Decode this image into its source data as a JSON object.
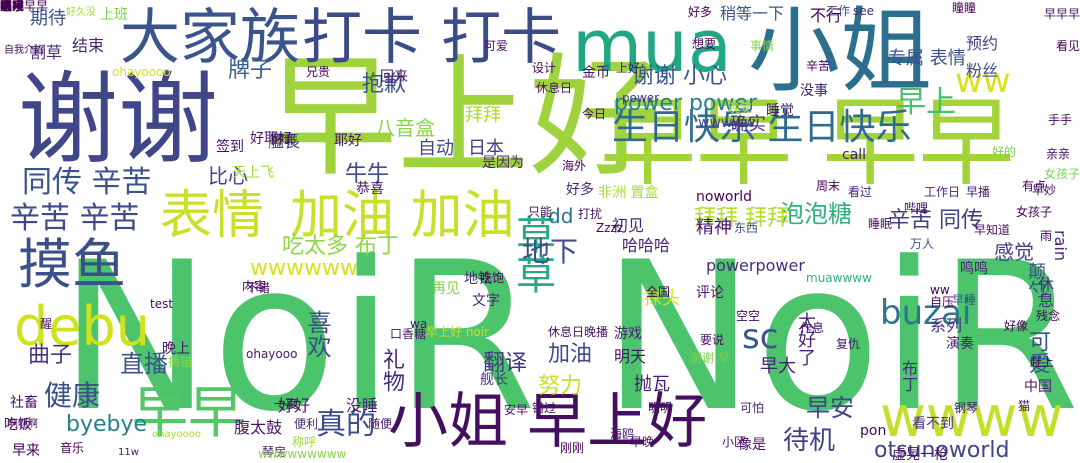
{
  "words": [
    {
      "text": "NoiR NoiR",
      "color": "#4bc46c"
    },
    {
      "text": "早上好",
      "color": "#9fd33e"
    },
    {
      "text": "谢谢",
      "color": "#404688"
    },
    {
      "text": "早早 早早",
      "color": "#a2d43a"
    },
    {
      "text": "小姐",
      "color": "#2b6e8e"
    },
    {
      "text": "mua",
      "color": "#22a785"
    },
    {
      "text": "大家族",
      "color": "#3b548b"
    },
    {
      "text": "打卡 打卡",
      "color": "#3a4b86"
    },
    {
      "text": "表情",
      "color": "#c9df2a"
    },
    {
      "text": "加油 加油",
      "color": "#c8e02a"
    },
    {
      "text": "摸鱼",
      "color": "#3b5089"
    },
    {
      "text": "debu",
      "color": "#d0e11d"
    },
    {
      "text": "早早",
      "color": "#54c568"
    },
    {
      "text": "小姐 早上好",
      "color": "#450f5f"
    },
    {
      "text": "wwww",
      "color": "#c3df2a"
    },
    {
      "text": "生日快乐 生日快乐",
      "color": "#2f6b8e"
    },
    {
      "text": "同传 辛苦",
      "color": "#3b528b"
    },
    {
      "text": "辛苦 辛苦",
      "color": "#3e4a89"
    },
    {
      "text": "早上",
      "color": "#45bf70"
    },
    {
      "text": "ww",
      "color": "#d8e219"
    },
    {
      "text": "草草",
      "color": "#2ca686"
    },
    {
      "text": "buzai",
      "color": "#2b768e"
    },
    {
      "text": "power power",
      "color": "#26828e"
    },
    {
      "text": "谢谢 小心",
      "color": "#3a538b"
    },
    {
      "text": "牌子",
      "color": "#355f8d"
    },
    {
      "text": "抱歉",
      "color": "#3b518b"
    },
    {
      "text": "wwwwww",
      "color": "#d6e21a"
    },
    {
      "text": "吃太多 布丁",
      "color": "#8ed645"
    },
    {
      "text": "泡泡糖",
      "color": "#32b17a"
    },
    {
      "text": "拜拜 拜拜",
      "color": "#b3dc2b"
    },
    {
      "text": "辛苦 同传",
      "color": "#413f80"
    },
    {
      "text": "健康",
      "color": "#3c4f8a"
    },
    {
      "text": "直播",
      "color": "#3a538b"
    },
    {
      "text": "曲子",
      "color": "#46327e"
    },
    {
      "text": "byebye",
      "color": "#277f8e"
    },
    {
      "text": "真的",
      "color": "#3c4f8a"
    },
    {
      "text": "早安",
      "color": "#3f4788"
    },
    {
      "text": "待机",
      "color": "#433e85"
    },
    {
      "text": "otsunoworld",
      "color": "#414487"
    },
    {
      "text": "sc",
      "color": "#39568c"
    },
    {
      "text": "喜欢",
      "color": "#3d4e8a"
    },
    {
      "text": "礼物",
      "color": "#482979"
    },
    {
      "text": "翻译",
      "color": "#453581"
    },
    {
      "text": "加油",
      "color": "#3e4c8a"
    },
    {
      "text": "努力",
      "color": "#c8e020"
    },
    {
      "text": "地下",
      "color": "#3c508b"
    },
    {
      "text": "感觉",
      "color": "#424086"
    },
    {
      "text": "可爱",
      "color": "#39558c"
    },
    {
      "text": "期待",
      "color": "#3b528b"
    },
    {
      "text": "结束",
      "color": "#482475"
    },
    {
      "text": "割草",
      "color": "#46307e"
    },
    {
      "text": "艦長",
      "color": "#3e4989"
    },
    {
      "text": "比心",
      "color": "#404588"
    },
    {
      "text": "牛牛",
      "color": "#3d4d8a"
    },
    {
      "text": "八音盒",
      "color": "#8bd646"
    },
    {
      "text": "自动",
      "color": "#3f4889"
    },
    {
      "text": "日本",
      "color": "#433d84"
    },
    {
      "text": "拜拜",
      "color": "#b2dd2d"
    },
    {
      "text": "预约",
      "color": "#424186"
    },
    {
      "text": "粉丝",
      "color": "#3e4c8a"
    },
    {
      "text": "专属 表情",
      "color": "#3b518b"
    },
    {
      "text": "不行",
      "color": "#440154"
    },
    {
      "text": "稍等一下",
      "color": "#3a548c"
    },
    {
      "text": "回来",
      "color": "#481a6c"
    },
    {
      "text": "上班",
      "color": "#7ad151"
    },
    {
      "text": "see",
      "color": "#482878"
    },
    {
      "text": "power",
      "color": "#443983"
    },
    {
      "text": "wwwww",
      "color": "#414487"
    },
    {
      "text": "确实",
      "color": "#46337f"
    },
    {
      "text": "dd",
      "color": "#2e6f8e"
    },
    {
      "text": "精神",
      "color": "#48186a"
    },
    {
      "text": "初见",
      "color": "#482576"
    },
    {
      "text": "哈哈哈",
      "color": "#481d6f"
    },
    {
      "text": "powerpower",
      "color": "#472d7b"
    },
    {
      "text": "探头",
      "color": "#d2e21b"
    },
    {
      "text": "地铁",
      "color": "#472c7a"
    },
    {
      "text": "再见",
      "color": "#84d44b"
    },
    {
      "text": "舰长",
      "color": "#46337f"
    },
    {
      "text": "文字",
      "color": "#482374"
    },
    {
      "text": "评论",
      "color": "#471164"
    },
    {
      "text": "游戏",
      "color": "#482071"
    },
    {
      "text": "明天",
      "color": "#48196b"
    },
    {
      "text": "早大",
      "color": "#482173"
    },
    {
      "text": "太好了",
      "color": "#482576"
    },
    {
      "text": "抛瓦",
      "color": "#481c6e"
    },
    {
      "text": "布丁",
      "color": "#46307e"
    },
    {
      "text": "演奏",
      "color": "#481b6d"
    },
    {
      "text": "系列",
      "color": "#472e7c"
    },
    {
      "text": "颠勺",
      "color": "#3c4f8a"
    },
    {
      "text": "好久没",
      "color": "#a5db36"
    },
    {
      "text": "没睡",
      "color": "#482071"
    },
    {
      "text": "好好",
      "color": "#471063"
    },
    {
      "text": "中国",
      "color": "#481a6c"
    },
    {
      "text": "看不到",
      "color": "#46327e"
    },
    {
      "text": "好多",
      "color": "#482878"
    },
    {
      "text": "工作日",
      "color": "#482677"
    },
    {
      "text": "早播",
      "color": "#481f70"
    },
    {
      "text": "早妙",
      "color": "#471063"
    },
    {
      "text": "女孩子",
      "color": "#440154"
    },
    {
      "text": "noworld",
      "color": "#440154"
    },
    {
      "text": "周末",
      "color": "#440154"
    },
    {
      "text": "看过",
      "color": "#482374"
    },
    {
      "text": "睡眠",
      "color": "#460b5e"
    },
    {
      "text": "雨",
      "color": "#440154"
    },
    {
      "text": "rain",
      "color": "#482878"
    },
    {
      "text": "鸣鸣",
      "color": "#482374"
    },
    {
      "text": "休息",
      "color": "#472f7d"
    },
    {
      "text": "睡觉",
      "color": "#481c6e"
    },
    {
      "text": "没事",
      "color": "#482173"
    },
    {
      "text": "辛苦",
      "color": "#46085c"
    },
    {
      "text": "是因为",
      "color": "#482475"
    },
    {
      "text": "海外",
      "color": "#440154"
    },
    {
      "text": "好耶",
      "color": "#471365"
    },
    {
      "text": "好耶好",
      "color": "#481467"
    },
    {
      "text": "耶好",
      "color": "#471365"
    },
    {
      "text": "天上飞",
      "color": "#a0da39"
    },
    {
      "text": "签到",
      "color": "#470e61"
    },
    {
      "text": "恭喜",
      "color": "#471164"
    },
    {
      "text": "非洲 置盒",
      "color": "#a8db34"
    },
    {
      "text": "腹太鼓",
      "color": "#48186a"
    },
    {
      "text": "虚晃一枪",
      "color": "#471365"
    },
    {
      "text": "pon",
      "color": "#46085c"
    },
    {
      "text": "琴房",
      "color": "#481668"
    },
    {
      "text": "像是",
      "color": "#460b5e"
    },
    {
      "text": "刚刚",
      "color": "#440154"
    },
    {
      "text": "错过",
      "color": "#481769"
    },
    {
      "text": "便利",
      "color": "#472a7a"
    },
    {
      "text": "一度",
      "color": "#46085c"
    },
    {
      "text": "随便",
      "color": "#481668"
    },
    {
      "text": "不错",
      "color": "#46085c"
    },
    {
      "text": "内容",
      "color": "#460a5d"
    },
    {
      "text": "早来",
      "color": "#440154"
    },
    {
      "text": "社畜",
      "color": "#470d60"
    },
    {
      "text": "吃饭",
      "color": "#471063"
    },
    {
      "text": "晚上",
      "color": "#481467"
    },
    {
      "text": "摘错",
      "color": "#8bd646"
    },
    {
      "text": "ohayooo",
      "color": "#481769"
    },
    {
      "text": "ohayoooo",
      "color": "#a5db36"
    },
    {
      "text": "全国",
      "color": "#440154"
    },
    {
      "text": "明明",
      "color": "#481467"
    },
    {
      "text": "可怕",
      "color": "#482173"
    },
    {
      "text": "复仇",
      "color": "#481668"
    },
    {
      "text": "自压",
      "color": "#46085c"
    },
    {
      "text": "钢琴",
      "color": "#482071"
    },
    {
      "text": "muawwww",
      "color": "#2fb47c"
    },
    {
      "text": "call",
      "color": "#481769"
    },
    {
      "text": "Zzzz",
      "color": "#460a5d"
    },
    {
      "text": "金币",
      "color": "#471063"
    },
    {
      "text": "设计",
      "color": "#46085c"
    },
    {
      "text": "可爱",
      "color": "#481467"
    },
    {
      "text": "兄贵",
      "color": "#440154"
    },
    {
      "text": "东西",
      "color": "#3b528b"
    },
    {
      "text": "只能",
      "color": "#460a5d"
    },
    {
      "text": "工作",
      "color": "#3e4989"
    },
    {
      "text": "称呼",
      "color": "#a0da39"
    },
    {
      "text": "wwwwwwwww",
      "color": "#8bd646"
    },
    {
      "text": "11w",
      "color": "#481467"
    },
    {
      "text": "自我介绍",
      "color": "#460b5e"
    },
    {
      "text": "空空",
      "color": "#46085c"
    },
    {
      "text": "要说",
      "color": "#471063"
    },
    {
      "text": "作息",
      "color": "#481467"
    },
    {
      "text": "好像",
      "color": "#440154"
    },
    {
      "text": "啊啊啊",
      "color": "#471063"
    },
    {
      "text": "吃饱",
      "color": "#440154"
    },
    {
      "text": "wa",
      "color": "#481467"
    },
    {
      "text": "安早",
      "color": "#481467"
    },
    {
      "text": "休息日",
      "color": "#481467"
    },
    {
      "text": "今日",
      "color": "#440154"
    },
    {
      "text": "手手",
      "color": "#460a5d"
    },
    {
      "text": "亲亲",
      "color": "#46085c"
    },
    {
      "text": "万人",
      "color": "#3b528b"
    },
    {
      "text": "残念",
      "color": "#440154"
    },
    {
      "text": "有点",
      "color": "#440154"
    },
    {
      "text": "事情",
      "color": "#8bd646"
    },
    {
      "text": "口香糖",
      "color": "#481467"
    },
    {
      "text": "早上好 noir",
      "color": "#c8e020"
    },
    {
      "text": "休息日晚播",
      "color": "#471063"
    },
    {
      "text": "打扰",
      "color": "#481467"
    },
    {
      "text": "谢谢 早",
      "color": "#7ad151"
    },
    {
      "text": "ohayoooo",
      "color": "#d2e21b"
    },
    {
      "text": "晚安",
      "color": "#a5db36"
    },
    {
      "text": "早睡",
      "color": "#3b528b"
    },
    {
      "text": "醒",
      "color": "#481467"
    },
    {
      "text": "test",
      "color": "#46085c"
    },
    {
      "text": "音乐",
      "color": "#440154"
    },
    {
      "text": "海鸥",
      "color": "#481467"
    },
    {
      "text": "早晚",
      "color": "#481467"
    },
    {
      "text": "小区",
      "color": "#481467"
    },
    {
      "text": "猫",
      "color": "#481467"
    },
    {
      "text": "赶上",
      "color": "#440154"
    },
    {
      "text": "哔哩",
      "color": "#471063"
    },
    {
      "text": "早知道",
      "color": "#481467"
    },
    {
      "text": "ww",
      "color": "#440154"
    },
    {
      "text": "上好",
      "color": "#481467"
    },
    {
      "text": "好的",
      "color": "#7ad151"
    },
    {
      "text": "女孩子",
      "color": "#7ad151"
    },
    {
      "text": "想要",
      "color": "#440154"
    },
    {
      "text": "好多",
      "color": "#440154"
    },
    {
      "text": "瞳瞳",
      "color": "#440154"
    },
    {
      "text": "早早早",
      "color": "#481467"
    },
    {
      "text": "看见",
      "color": "#440154"
    },
    {
      "text": "好睡",
      "color": "#481467"
    },
    {
      "text": "名字",
      "color": "#440154"
    },
    {
      "text": "鸣",
      "color": "#440154"
    },
    {
      "text": "醒来",
      "color": "#440154"
    },
    {
      "text": "咦",
      "color": "#440154"
    },
    {
      "text": "哦哦",
      "color": "#440154"
    },
    {
      "text": "摸摸",
      "color": "#440154"
    },
    {
      "text": "早早早早",
      "color": "#440154"
    },
    {
      "text": "啊",
      "color": "#440154"
    }
  ]
}
